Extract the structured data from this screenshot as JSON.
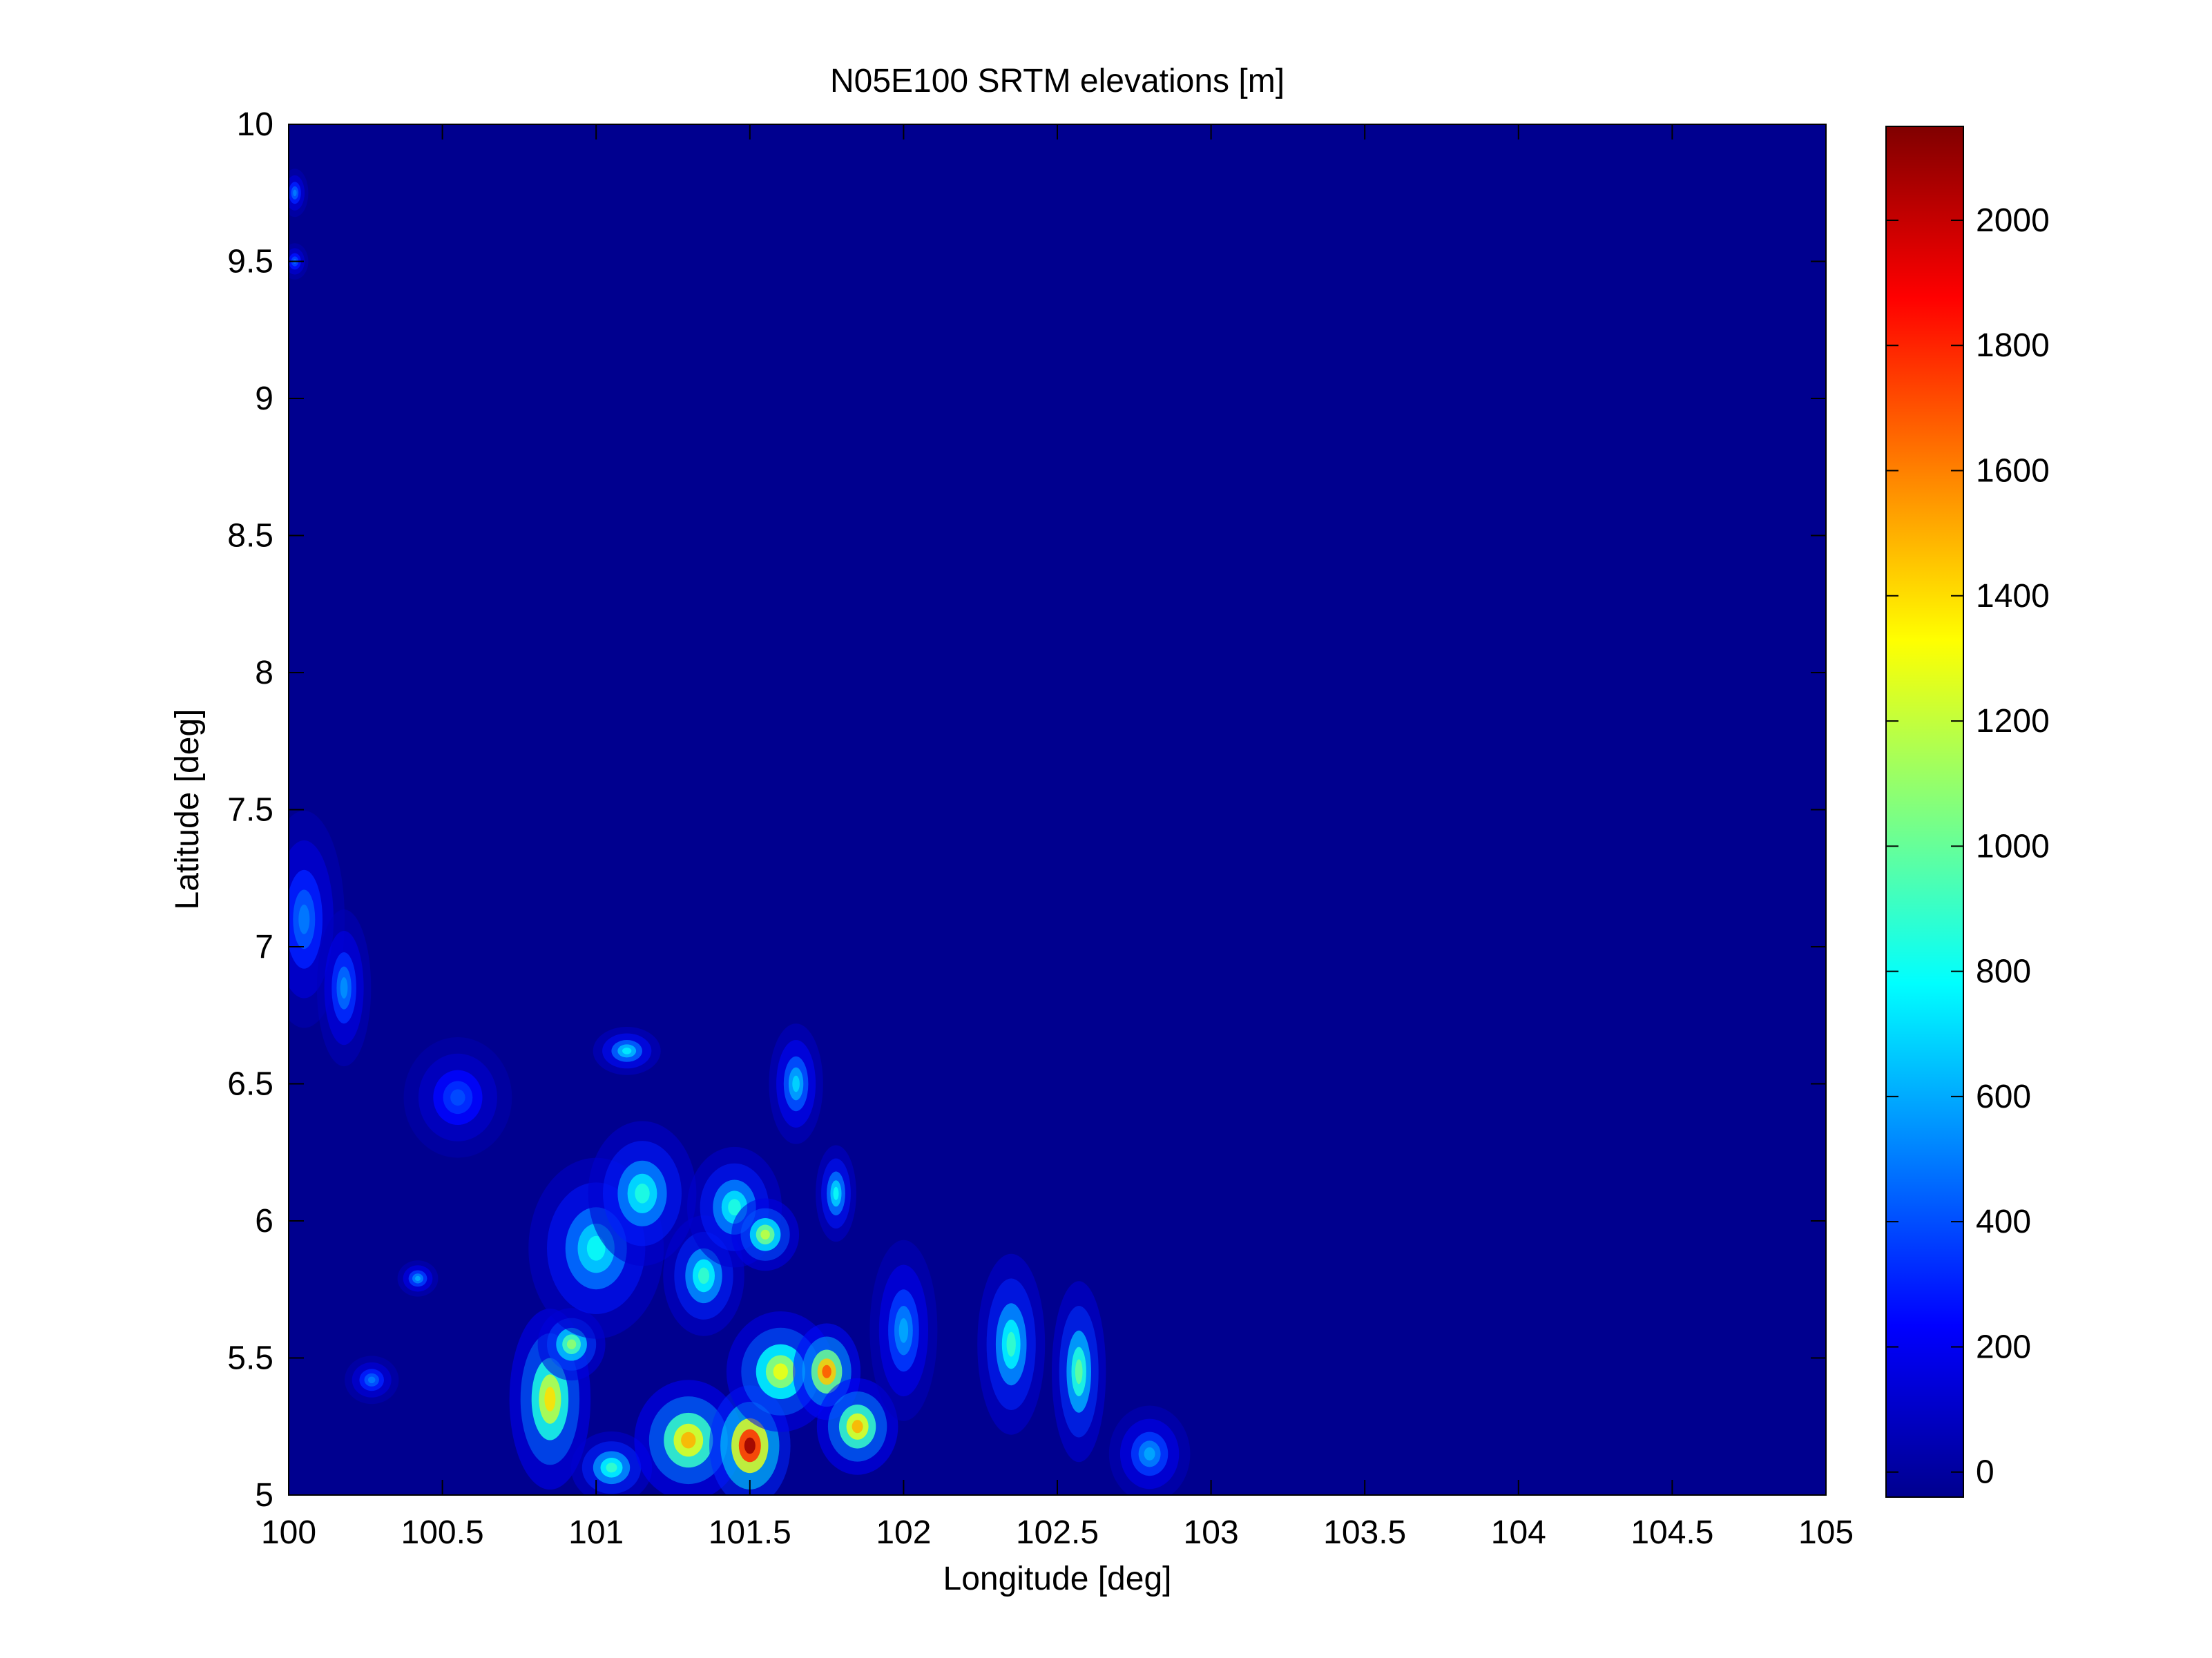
{
  "chart_data": {
    "type": "heatmap",
    "title": "N05E100 SRTM elevations [m]",
    "xlabel": "Longitude [deg]",
    "ylabel": "Latitude [deg]",
    "xlim": [
      100,
      105
    ],
    "ylim": [
      5,
      10
    ],
    "xticks": [
      100,
      100.5,
      101,
      101.5,
      102,
      102.5,
      103,
      103.5,
      104,
      104.5,
      105
    ],
    "xtick_labels": [
      "100",
      "100.5",
      "101",
      "101.5",
      "102",
      "102.5",
      "103",
      "103.5",
      "104",
      "104.5",
      "105"
    ],
    "yticks": [
      5,
      5.5,
      6,
      6.5,
      7,
      7.5,
      8,
      8.5,
      9,
      9.5,
      10
    ],
    "ytick_labels": [
      "5",
      "5.5",
      "6",
      "6.5",
      "7",
      "7.5",
      "8",
      "8.5",
      "9",
      "9.5",
      "10"
    ],
    "colorbar": {
      "colormap": "jet",
      "range": [
        -40,
        2150
      ],
      "ticks": [
        0,
        200,
        400,
        600,
        800,
        1000,
        1200,
        1400,
        1600,
        1800,
        2000
      ],
      "tick_labels": [
        "0",
        "200",
        "400",
        "600",
        "800",
        "1000",
        "1200",
        "1400",
        "1600",
        "1800",
        "2000"
      ]
    },
    "background_value": 0,
    "features": [
      {
        "lon": 100.02,
        "lat": 9.75,
        "elev": 500,
        "sx": 0.02,
        "sy": 0.04
      },
      {
        "lon": 100.02,
        "lat": 9.5,
        "elev": 450,
        "sx": 0.02,
        "sy": 0.03
      },
      {
        "lon": 100.05,
        "lat": 7.1,
        "elev": 500,
        "sx": 0.06,
        "sy": 0.18
      },
      {
        "lon": 100.18,
        "lat": 6.85,
        "elev": 550,
        "sx": 0.04,
        "sy": 0.13
      },
      {
        "lon": 100.27,
        "lat": 5.42,
        "elev": 500,
        "sx": 0.04,
        "sy": 0.04
      },
      {
        "lon": 100.42,
        "lat": 5.79,
        "elev": 600,
        "sx": 0.03,
        "sy": 0.03
      },
      {
        "lon": 100.55,
        "lat": 6.45,
        "elev": 400,
        "sx": 0.08,
        "sy": 0.1
      },
      {
        "lon": 100.85,
        "lat": 5.35,
        "elev": 1400,
        "sx": 0.06,
        "sy": 0.15
      },
      {
        "lon": 100.92,
        "lat": 5.55,
        "elev": 1100,
        "sx": 0.05,
        "sy": 0.06
      },
      {
        "lon": 101.0,
        "lat": 5.9,
        "elev": 800,
        "sx": 0.1,
        "sy": 0.15
      },
      {
        "lon": 101.05,
        "lat": 5.1,
        "elev": 900,
        "sx": 0.06,
        "sy": 0.06
      },
      {
        "lon": 101.1,
        "lat": 6.62,
        "elev": 750,
        "sx": 0.05,
        "sy": 0.04
      },
      {
        "lon": 101.15,
        "lat": 6.1,
        "elev": 850,
        "sx": 0.08,
        "sy": 0.12
      },
      {
        "lon": 101.3,
        "lat": 5.2,
        "elev": 1500,
        "sx": 0.08,
        "sy": 0.1
      },
      {
        "lon": 101.35,
        "lat": 5.8,
        "elev": 900,
        "sx": 0.06,
        "sy": 0.1
      },
      {
        "lon": 101.45,
        "lat": 6.05,
        "elev": 850,
        "sx": 0.07,
        "sy": 0.1
      },
      {
        "lon": 101.5,
        "lat": 5.18,
        "elev": 2100,
        "sx": 0.06,
        "sy": 0.1
      },
      {
        "lon": 101.55,
        "lat": 5.95,
        "elev": 1200,
        "sx": 0.05,
        "sy": 0.06
      },
      {
        "lon": 101.6,
        "lat": 5.45,
        "elev": 1300,
        "sx": 0.08,
        "sy": 0.1
      },
      {
        "lon": 101.65,
        "lat": 6.5,
        "elev": 700,
        "sx": 0.04,
        "sy": 0.1
      },
      {
        "lon": 101.75,
        "lat": 5.45,
        "elev": 1700,
        "sx": 0.05,
        "sy": 0.08
      },
      {
        "lon": 101.85,
        "lat": 5.25,
        "elev": 1500,
        "sx": 0.06,
        "sy": 0.08
      },
      {
        "lon": 101.78,
        "lat": 6.1,
        "elev": 800,
        "sx": 0.03,
        "sy": 0.08
      },
      {
        "lon": 102.0,
        "lat": 5.6,
        "elev": 600,
        "sx": 0.05,
        "sy": 0.15
      },
      {
        "lon": 102.35,
        "lat": 5.55,
        "elev": 900,
        "sx": 0.05,
        "sy": 0.15
      },
      {
        "lon": 102.57,
        "lat": 5.45,
        "elev": 1000,
        "sx": 0.04,
        "sy": 0.15
      },
      {
        "lon": 102.8,
        "lat": 5.15,
        "elev": 600,
        "sx": 0.06,
        "sy": 0.08
      }
    ]
  }
}
